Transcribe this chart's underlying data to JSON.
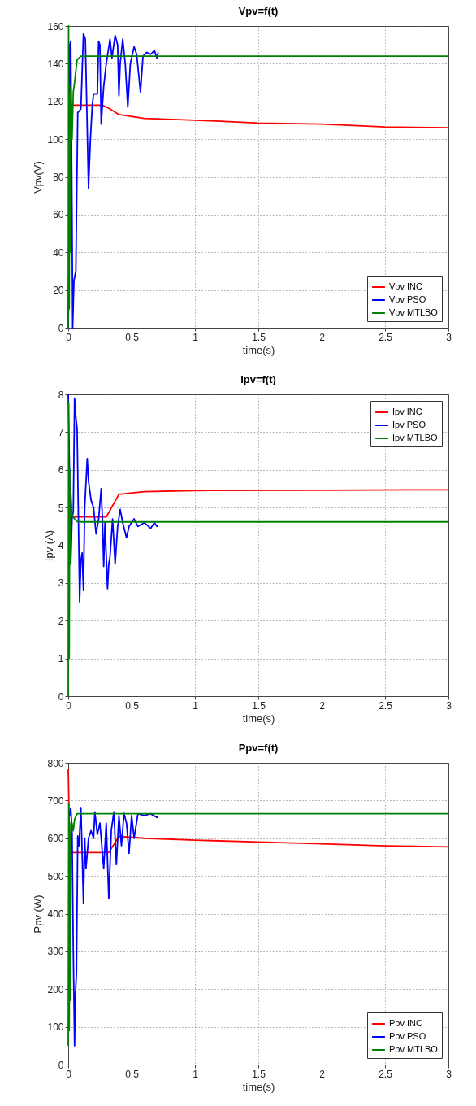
{
  "chart_data": [
    {
      "type": "line",
      "title": "Vpv=f(t)",
      "xlabel": "time(s)",
      "ylabel": "Vpv(V)",
      "xlim": [
        0,
        3
      ],
      "xticks": [
        0,
        0.5,
        1,
        1.5,
        2,
        2.5,
        3
      ],
      "ylim": [
        0,
        160
      ],
      "yticks": [
        0,
        20,
        40,
        60,
        80,
        100,
        120,
        140,
        160
      ],
      "grid": true,
      "legend": "bottom right",
      "series": [
        {
          "name": "Vpv INC",
          "color": "#ff0000",
          "x": [
            0.02,
            0.1,
            0.2,
            0.27,
            0.33,
            0.4,
            0.6,
            1.0,
            1.2,
            1.5,
            2.0,
            2.5,
            3.0
          ],
          "values": [
            118,
            118,
            118,
            118,
            116,
            113,
            111,
            110,
            109.5,
            108.5,
            108,
            106.5,
            106
          ]
        },
        {
          "name": "Vpv PSO",
          "color": "#0000ff",
          "x": [
            0,
            0.005,
            0.012,
            0.02,
            0.03,
            0.035,
            0.045,
            0.06,
            0.075,
            0.1,
            0.12,
            0.135,
            0.16,
            0.175,
            0.19,
            0.2,
            0.23,
            0.24,
            0.25,
            0.26,
            0.28,
            0.3,
            0.33,
            0.345,
            0.37,
            0.39,
            0.4,
            0.41,
            0.43,
            0.45,
            0.47,
            0.49,
            0.52,
            0.54,
            0.57,
            0.59,
            0.62,
            0.65,
            0.68,
            0.7,
            0.71
          ],
          "values": [
            0,
            30,
            150,
            152,
            60,
            0,
            25,
            30,
            114,
            116,
            156,
            153,
            74,
            100,
            118,
            124,
            124,
            152,
            150,
            108,
            128,
            140,
            153,
            143,
            155,
            150,
            123,
            140,
            153,
            140,
            117,
            140,
            149,
            145,
            125,
            144,
            146,
            145,
            147,
            143,
            146
          ]
        },
        {
          "name": "Vpv MTLBO",
          "color": "#008000",
          "x": [
            0,
            0.003,
            0.008,
            0.012,
            0.016,
            0.02,
            0.03,
            0.04,
            0.05,
            0.07,
            0.1,
            0.5,
            1,
            2,
            3
          ],
          "values": [
            0,
            160,
            10,
            125,
            40,
            128,
            100,
            125,
            130,
            142,
            144,
            144,
            144,
            144,
            144
          ]
        }
      ]
    },
    {
      "type": "line",
      "title": "Ipv=f(t)",
      "xlabel": "time(s)",
      "ylabel": "Ipv (A)",
      "xlim": [
        0,
        3
      ],
      "xticks": [
        0,
        0.5,
        1,
        1.5,
        2,
        2.5,
        3
      ],
      "ylim": [
        0,
        8
      ],
      "yticks": [
        0,
        1,
        2,
        3,
        4,
        5,
        6,
        7,
        8
      ],
      "grid": true,
      "legend": "top right",
      "series": [
        {
          "name": "Ipv INC",
          "color": "#ff0000",
          "x": [
            0.01,
            0.02,
            0.1,
            0.2,
            0.3,
            0.4,
            0.6,
            1.0,
            2.0,
            3.0
          ],
          "values": [
            5,
            4.75,
            4.75,
            4.75,
            4.75,
            5.35,
            5.42,
            5.45,
            5.46,
            5.47
          ]
        },
        {
          "name": "Ipv PSO",
          "color": "#0000ff",
          "x": [
            0,
            0.01,
            0.02,
            0.03,
            0.04,
            0.05,
            0.06,
            0.07,
            0.08,
            0.09,
            0.1,
            0.11,
            0.12,
            0.13,
            0.15,
            0.16,
            0.18,
            0.2,
            0.22,
            0.24,
            0.26,
            0.27,
            0.28,
            0.29,
            0.31,
            0.32,
            0.33,
            0.35,
            0.37,
            0.39,
            0.41,
            0.43,
            0.46,
            0.48,
            0.52,
            0.55,
            0.6,
            0.65,
            0.68,
            0.7,
            0.71
          ],
          "values": [
            8,
            6,
            3.5,
            4.7,
            4.9,
            7.9,
            7.4,
            7.1,
            4.8,
            2.5,
            3.6,
            3.8,
            2.8,
            5.0,
            6.3,
            5.7,
            5.2,
            5.0,
            4.3,
            4.7,
            5.5,
            4.7,
            3.44,
            4.6,
            2.85,
            3.5,
            3.7,
            4.7,
            3.5,
            4.5,
            4.95,
            4.6,
            4.2,
            4.5,
            4.7,
            4.5,
            4.6,
            4.45,
            4.6,
            4.5,
            4.55
          ]
        },
        {
          "name": "Ipv MTLBO",
          "color": "#008000",
          "x": [
            0,
            0.003,
            0.008,
            0.012,
            0.016,
            0.02,
            0.03,
            0.05,
            0.07,
            0.1,
            1,
            2,
            3
          ],
          "values": [
            0,
            7.8,
            1.0,
            6,
            3.5,
            5.4,
            4.8,
            4.7,
            4.63,
            4.62,
            4.62,
            4.62,
            4.62
          ]
        }
      ]
    },
    {
      "type": "line",
      "title": "Ppv=f(t)",
      "xlabel": "time(s)",
      "ylabel": "Ppv (W)",
      "xlim": [
        0,
        3
      ],
      "xticks": [
        0,
        0.5,
        1,
        1.5,
        2,
        2.5,
        3
      ],
      "ylim": [
        0,
        800
      ],
      "yticks": [
        0,
        100,
        200,
        300,
        400,
        500,
        600,
        700,
        800
      ],
      "grid": true,
      "legend": "bottom right",
      "series": [
        {
          "name": "Ppv INC",
          "color": "#ff0000",
          "x": [
            0,
            0.01,
            0.02,
            0.1,
            0.2,
            0.32,
            0.4,
            0.6,
            1.0,
            1.5,
            2.0,
            2.5,
            3.0
          ],
          "values": [
            785,
            600,
            562,
            562,
            562,
            562,
            605,
            600,
            595,
            590,
            585,
            580,
            577
          ]
        },
        {
          "name": "Ppv PSO",
          "color": "#0000ff",
          "x": [
            0.01,
            0.02,
            0.03,
            0.04,
            0.05,
            0.055,
            0.065,
            0.075,
            0.085,
            0.1,
            0.11,
            0.12,
            0.13,
            0.14,
            0.16,
            0.18,
            0.2,
            0.21,
            0.23,
            0.25,
            0.28,
            0.3,
            0.32,
            0.34,
            0.36,
            0.38,
            0.4,
            0.42,
            0.44,
            0.46,
            0.48,
            0.5,
            0.52,
            0.55,
            0.6,
            0.65,
            0.7,
            0.71
          ],
          "values": [
            660,
            680,
            620,
            300,
            50,
            177,
            241,
            606,
            580,
            681,
            560,
            428,
            600,
            520,
            600,
            620,
            600,
            670,
            610,
            640,
            520,
            640,
            440,
            620,
            670,
            530,
            660,
            580,
            666,
            640,
            560,
            660,
            600,
            665,
            660,
            665,
            655,
            660
          ]
        },
        {
          "name": "Ppv MTLBO",
          "color": "#008000",
          "x": [
            0,
            0.004,
            0.008,
            0.012,
            0.016,
            0.02,
            0.03,
            0.04,
            0.05,
            0.07,
            0.1,
            1,
            2,
            3
          ],
          "values": [
            50,
            690,
            90,
            640,
            170,
            600,
            640,
            620,
            650,
            665,
            665,
            665,
            665,
            665
          ]
        }
      ]
    }
  ]
}
